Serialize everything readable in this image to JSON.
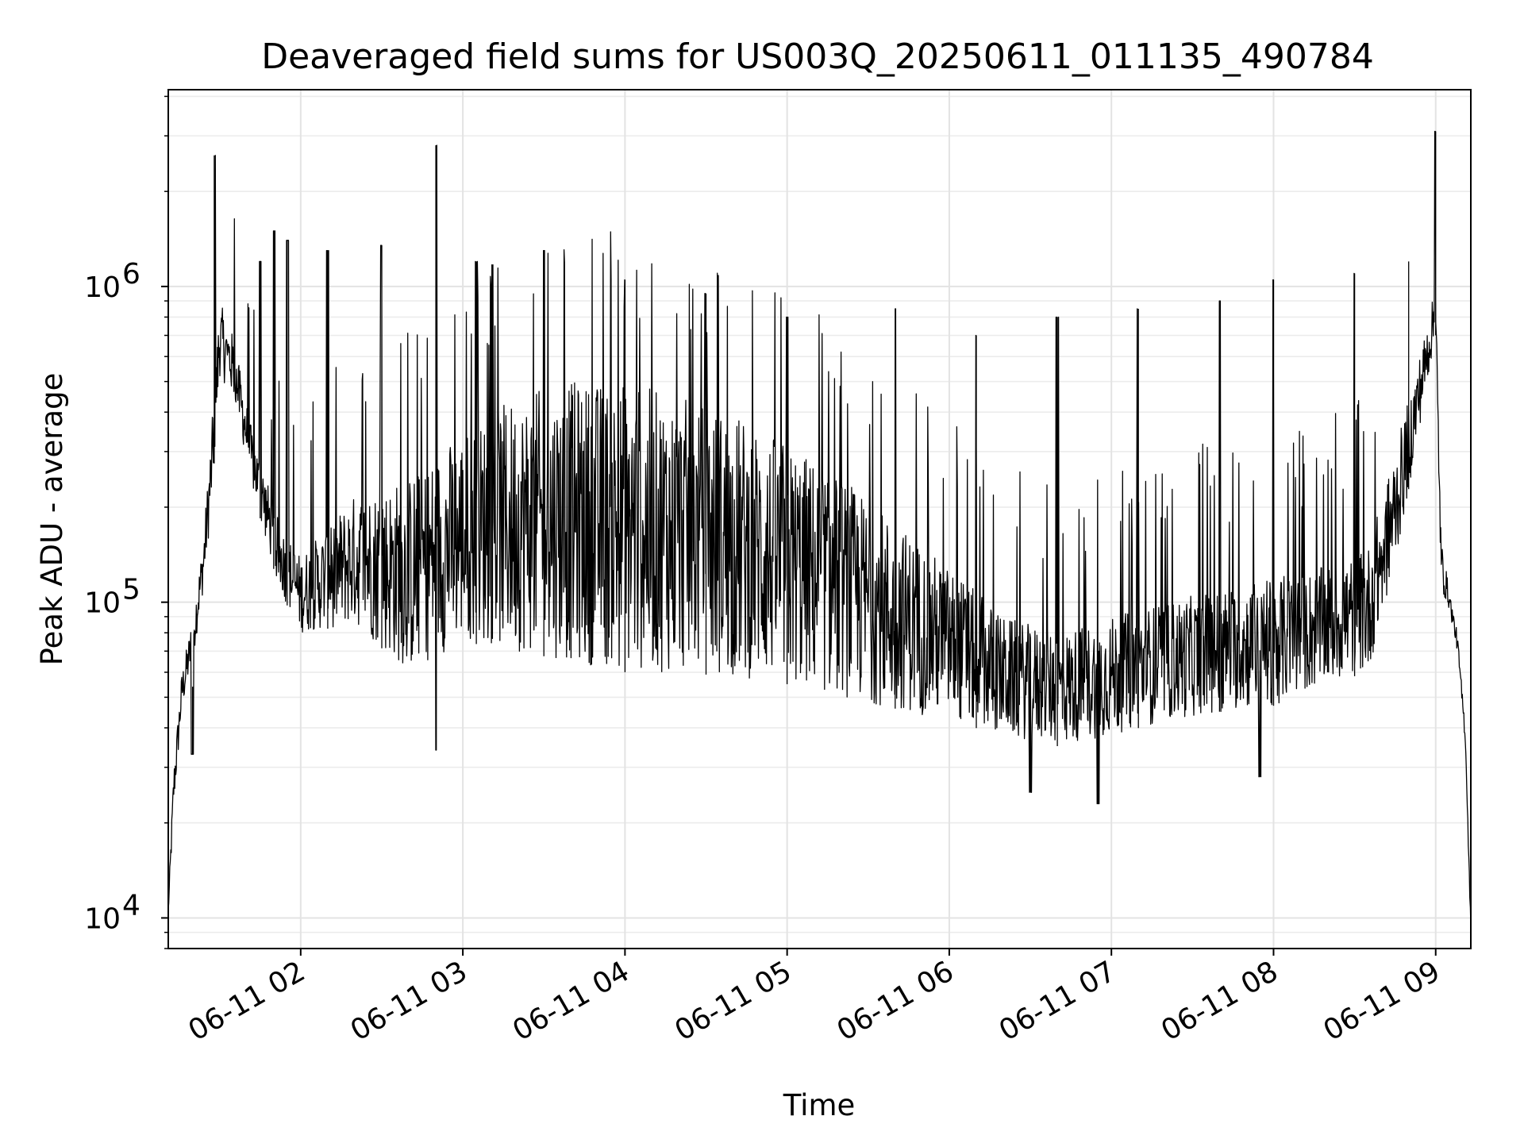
{
  "chart_data": {
    "type": "line",
    "title": "Deaveraged field sums for US003Q_20250611_011135_490784",
    "xlabel": "Time",
    "ylabel": "Peak ADU - average",
    "yscale": "log",
    "ylim": [
      8000,
      4200000
    ],
    "xlim": [
      "06-11 01:11",
      "06-11 09:13"
    ],
    "grid": true,
    "x_ticks": [
      {
        "label": "06-11 02",
        "t": "06-11 02:00"
      },
      {
        "label": "06-11 03",
        "t": "06-11 03:00"
      },
      {
        "label": "06-11 04",
        "t": "06-11 04:00"
      },
      {
        "label": "06-11 05",
        "t": "06-11 05:00"
      },
      {
        "label": "06-11 06",
        "t": "06-11 06:00"
      },
      {
        "label": "06-11 07",
        "t": "06-11 07:00"
      },
      {
        "label": "06-11 08",
        "t": "06-11 08:00"
      },
      {
        "label": "06-11 09",
        "t": "06-11 09:00"
      }
    ],
    "y_ticks": [
      {
        "base": "10",
        "exp": "4",
        "value": 10000
      },
      {
        "base": "10",
        "exp": "5",
        "value": 100000
      },
      {
        "base": "10",
        "exp": "6",
        "value": 1000000
      }
    ],
    "series": [
      {
        "color": "#000000",
        "baseline_envelope": {
          "t": [
            "06-11 01:11",
            "06-11 01:13",
            "06-11 01:16",
            "06-11 01:20",
            "06-11 01:24",
            "06-11 01:27",
            "06-11 01:30",
            "06-11 01:35",
            "06-11 01:42",
            "06-11 01:52",
            "06-11 02:00",
            "06-11 02:20",
            "06-11 02:40",
            "06-11 03:00",
            "06-11 03:20",
            "06-11 03:40",
            "06-11 04:00",
            "06-11 04:20",
            "06-11 04:40",
            "06-11 05:00",
            "06-11 05:20",
            "06-11 05:40",
            "06-11 06:00",
            "06-11 06:20",
            "06-11 06:40",
            "06-11 07:00",
            "06-11 07:20",
            "06-11 07:40",
            "06-11 08:00",
            "06-11 08:20",
            "06-11 08:35",
            "06-11 08:45",
            "06-11 08:55",
            "06-11 09:00",
            "06-11 09:02",
            "06-11 09:05",
            "06-11 09:08",
            "06-11 09:11",
            "06-11 09:13"
          ],
          "low": [
            10000,
            22000,
            45000,
            65000,
            110000,
            200000,
            520000,
            450000,
            230000,
            110000,
            80000,
            85000,
            60000,
            75000,
            70000,
            65000,
            60000,
            60000,
            58000,
            55000,
            50000,
            46000,
            42000,
            38000,
            35000,
            38000,
            42000,
            45000,
            47000,
            55000,
            60000,
            130000,
            400000,
            700000,
            110000,
            95000,
            70000,
            35000,
            9000
          ],
          "high": [
            11000,
            30000,
            60000,
            90000,
            160000,
            350000,
            900000,
            700000,
            350000,
            180000,
            140000,
            220000,
            250000,
            350000,
            450000,
            500000,
            500000,
            450000,
            400000,
            320000,
            250000,
            180000,
            130000,
            90000,
            80000,
            90000,
            100000,
            110000,
            120000,
            130000,
            150000,
            300000,
            650000,
            1000000,
            160000,
            110000,
            80000,
            40000,
            9500
          ]
        },
        "peaks": [
          {
            "t": "06-11 01:28",
            "value": 2600000
          },
          {
            "t": "06-11 01:45",
            "value": 1200000
          },
          {
            "t": "06-11 01:50",
            "value": 1500000
          },
          {
            "t": "06-11 01:55",
            "value": 1400000
          },
          {
            "t": "06-11 02:10",
            "value": 1300000
          },
          {
            "t": "06-11 02:30",
            "value": 1350000
          },
          {
            "t": "06-11 02:50",
            "value": 2800000
          },
          {
            "t": "06-11 03:05",
            "value": 1200000
          },
          {
            "t": "06-11 03:30",
            "value": 1300000
          },
          {
            "t": "06-11 04:00",
            "value": 1050000
          },
          {
            "t": "06-11 04:30",
            "value": 950000
          },
          {
            "t": "06-11 05:00",
            "value": 800000
          },
          {
            "t": "06-11 05:40",
            "value": 850000
          },
          {
            "t": "06-11 06:10",
            "value": 700000
          },
          {
            "t": "06-11 06:40",
            "value": 800000
          },
          {
            "t": "06-11 07:10",
            "value": 850000
          },
          {
            "t": "06-11 07:40",
            "value": 900000
          },
          {
            "t": "06-11 08:00",
            "value": 1050000
          },
          {
            "t": "06-11 08:30",
            "value": 1100000
          },
          {
            "t": "06-11 08:50",
            "value": 1200000
          },
          {
            "t": "06-11 09:00",
            "value": 3100000
          }
        ],
        "dips": [
          {
            "t": "06-11 01:20",
            "value": 33000
          },
          {
            "t": "06-11 02:50",
            "value": 34000
          },
          {
            "t": "06-11 06:30",
            "value": 25000
          },
          {
            "t": "06-11 06:55",
            "value": 23000
          },
          {
            "t": "06-11 07:55",
            "value": 28000
          }
        ]
      }
    ]
  }
}
